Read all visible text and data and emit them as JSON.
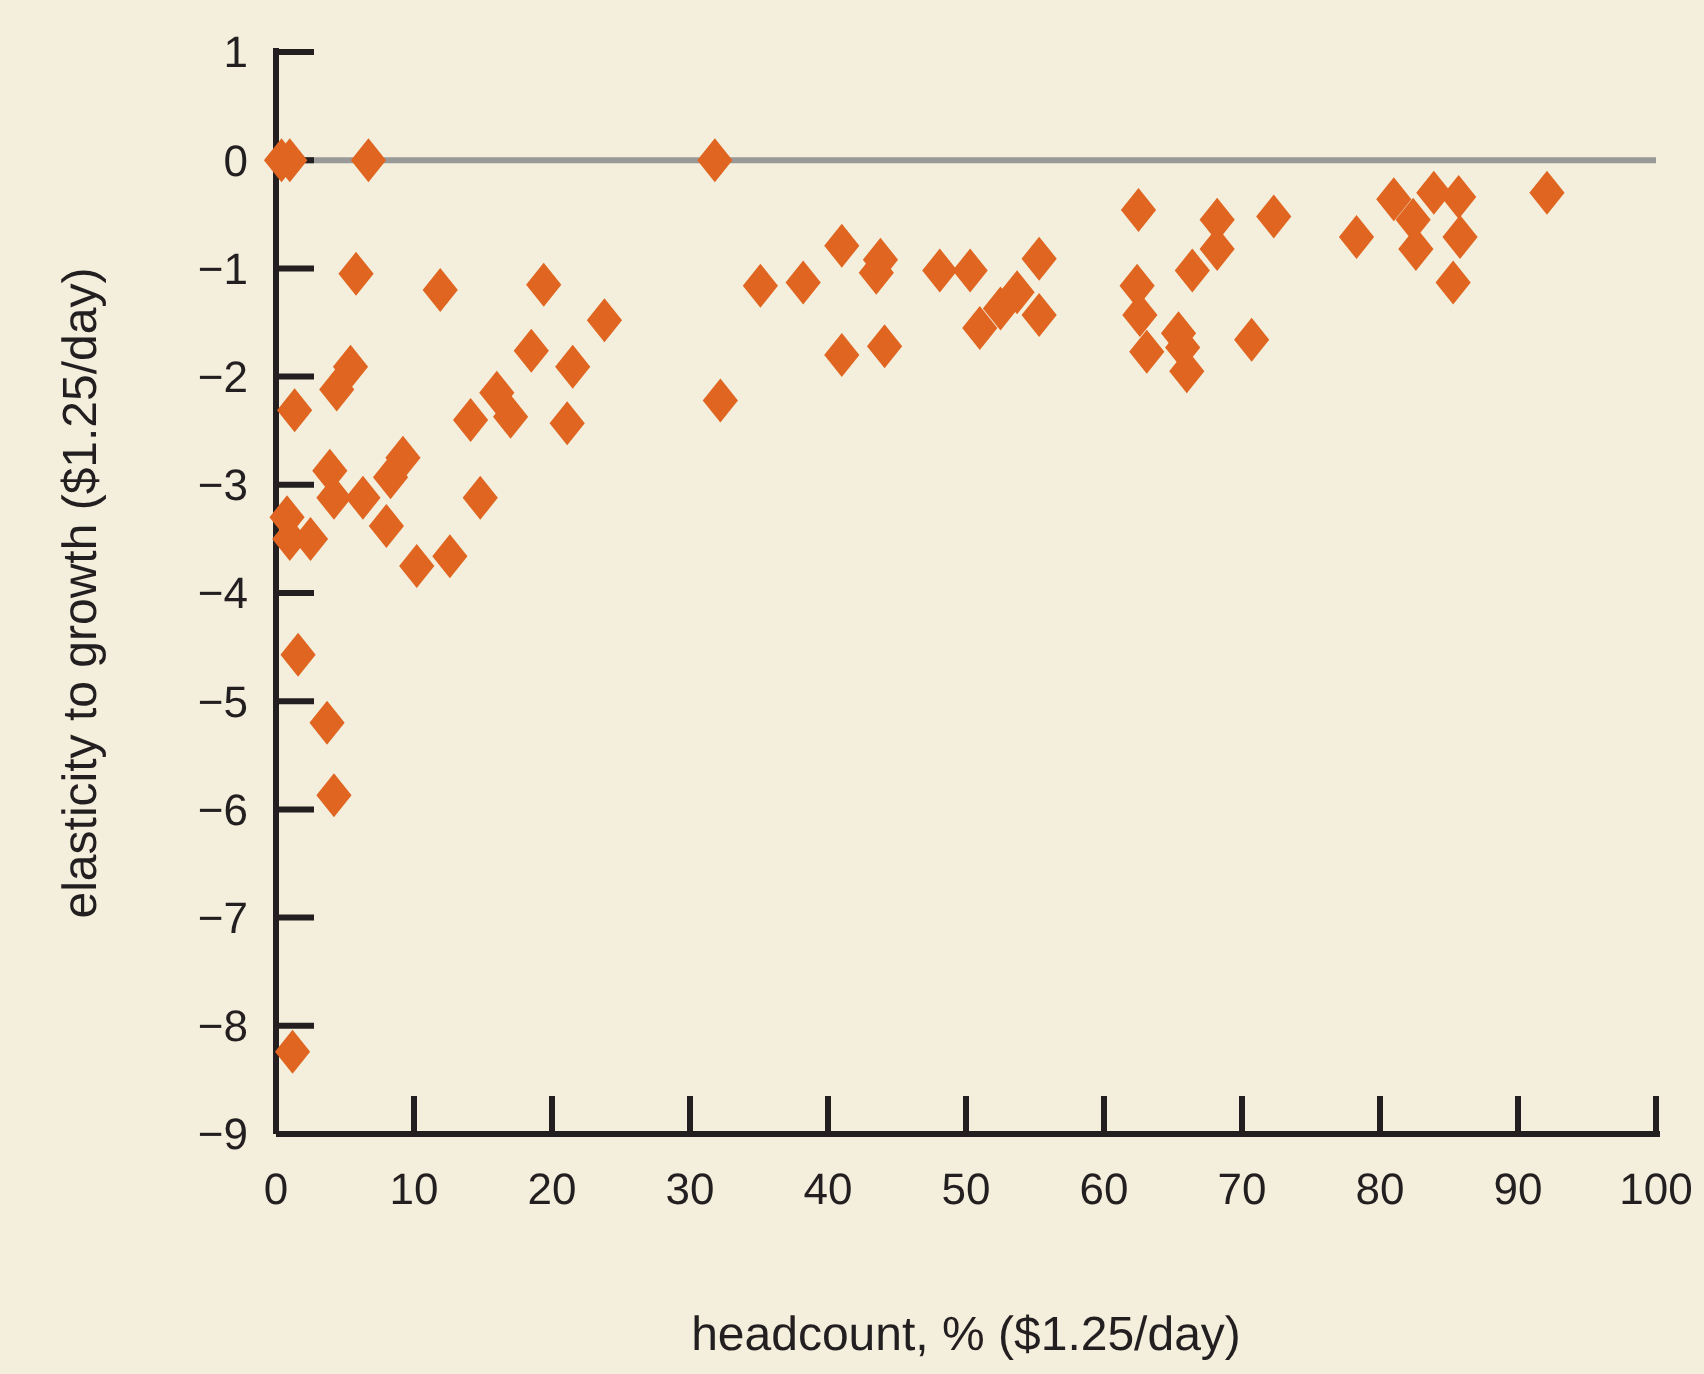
{
  "chart_data": {
    "type": "scatter",
    "xlabel": "headcount, % ($1.25/day)",
    "ylabel": "elasticity to growth ($1.25/day)",
    "xlim": [
      0,
      100
    ],
    "ylim": [
      -9,
      1
    ],
    "xticks": [
      0,
      10,
      20,
      30,
      40,
      50,
      60,
      70,
      80,
      90,
      100
    ],
    "yticks": [
      1,
      0,
      -1,
      -2,
      -3,
      -4,
      -5,
      -6,
      -7,
      -8,
      -9
    ],
    "grid": false,
    "marker": "diamond",
    "ref_lines": [
      {
        "axis": "y",
        "value": 0,
        "color": "#999999"
      }
    ],
    "series": [
      {
        "color": "#e06520",
        "x": [
          0.4,
          1,
          6.7,
          31.8,
          5.8,
          11.9,
          19.4,
          23.8,
          18.5,
          21.5,
          5.4,
          4.4,
          1.35,
          16,
          17,
          14.1,
          21.1,
          3.9,
          9.2,
          8.3,
          4.2,
          6.3,
          14.8,
          0.8,
          1,
          2.5,
          8,
          10.2,
          12.6,
          1.6,
          3.7,
          4.2,
          1.2,
          35.1,
          38.2,
          41,
          43.8,
          43.5,
          48.1,
          50.3,
          55.3,
          51,
          52.5,
          53.7,
          55.3,
          41,
          44.1,
          32.2,
          62.5,
          62.4,
          62.6,
          63.1,
          68.2,
          68.2,
          66.4,
          72.3,
          78.3,
          81,
          82.4,
          83.9,
          85.7,
          82.6,
          85.8,
          85.3,
          92.1,
          70.7,
          65.7,
          66,
          65.4
        ],
        "values": [
          0,
          0,
          0,
          0,
          -1.05,
          -1.2,
          -1.15,
          -1.48,
          -1.76,
          -1.91,
          -1.91,
          -2.12,
          -2.31,
          -2.15,
          -2.37,
          -2.4,
          -2.43,
          -2.87,
          -2.75,
          -2.93,
          -3.12,
          -3.12,
          -3.12,
          -3.3,
          -3.5,
          -3.5,
          -3.38,
          -3.75,
          -3.66,
          -4.57,
          -5.2,
          -5.87,
          -8.24,
          -1.16,
          -1.13,
          -0.79,
          -0.92,
          -1.04,
          -1.02,
          -1.02,
          -0.91,
          -1.55,
          -1.37,
          -1.22,
          -1.43,
          -1.8,
          -1.72,
          -2.22,
          -0.46,
          -1.16,
          -1.43,
          -1.77,
          -0.55,
          -0.82,
          -1.02,
          -0.52,
          -0.71,
          -0.36,
          -0.55,
          -0.3,
          -0.34,
          -0.82,
          -0.71,
          -1.13,
          -0.3,
          -1.66,
          -1.73,
          -1.95,
          -1.6
        ]
      }
    ]
  }
}
